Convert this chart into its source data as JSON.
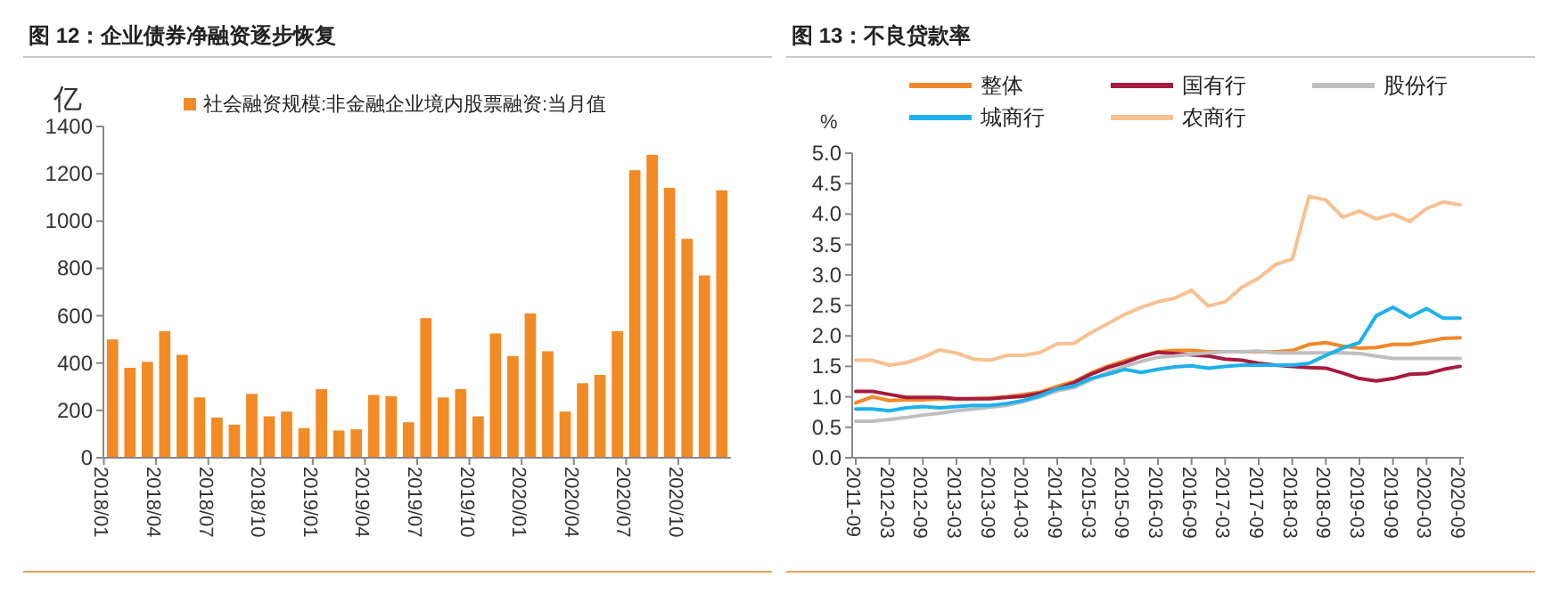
{
  "chart_data": [
    {
      "type": "bar",
      "title": "图 12：企业债券净融资逐步恢复",
      "ylabel": "亿",
      "categories": [
        "2018/01",
        null,
        null,
        "2018/04",
        null,
        null,
        "2018/07",
        null,
        null,
        "2018/10",
        null,
        null,
        "2019/01",
        null,
        null,
        "2019/04",
        null,
        null,
        "2019/07",
        null,
        null,
        "2019/10",
        null,
        null,
        "2020/01",
        null,
        null,
        "2020/04",
        null,
        null,
        "2020/07",
        null,
        null,
        "2020/10",
        null,
        null
      ],
      "series": [
        {
          "name": "社会融资规模:非金融企业境内股票融资:当月值",
          "color": "#f28a26",
          "values": [
            500,
            380,
            405,
            535,
            435,
            255,
            170,
            140,
            270,
            175,
            195,
            125,
            290,
            115,
            120,
            265,
            260,
            150,
            590,
            255,
            290,
            175,
            525,
            430,
            610,
            450,
            195,
            315,
            350,
            535,
            1215,
            1280,
            1140,
            925,
            770,
            1130
          ]
        }
      ],
      "ylim": [
        0,
        1400
      ],
      "yticks": [
        0,
        200,
        400,
        600,
        800,
        1000,
        1200,
        1400
      ],
      "grid": false,
      "legend": "top"
    },
    {
      "type": "line",
      "title": "图 13：不良贷款率",
      "ylabel": "%",
      "categories": [
        "2011-09",
        null,
        "2012-03",
        null,
        "2012-09",
        null,
        "2013-03",
        null,
        "2013-09",
        null,
        "2014-03",
        null,
        "2014-09",
        null,
        "2015-03",
        null,
        "2015-09",
        null,
        "2016-03",
        null,
        "2016-09",
        null,
        "2017-03",
        null,
        "2017-09",
        null,
        "2018-03",
        null,
        "2018-09",
        null,
        "2019-03",
        null,
        "2019-09",
        null,
        "2020-03",
        null,
        "2020-09"
      ],
      "series": [
        {
          "name": "整体",
          "color": "#f0882a",
          "values": [
            0.9,
            1.0,
            0.94,
            0.95,
            0.95,
            0.97,
            0.96,
            0.97,
            0.98,
            1.0,
            1.04,
            1.08,
            1.17,
            1.25,
            1.39,
            1.5,
            1.59,
            1.67,
            1.74,
            1.76,
            1.76,
            1.74,
            1.74,
            1.74,
            1.74,
            1.74,
            1.76,
            1.86,
            1.89,
            1.83,
            1.8,
            1.81,
            1.86,
            1.86,
            1.91,
            1.96,
            1.97
          ]
        },
        {
          "name": "国有行",
          "color": "#a61b3e",
          "values": [
            1.09,
            1.09,
            1.04,
            0.99,
            0.99,
            0.99,
            0.97,
            0.97,
            0.97,
            0.99,
            1.01,
            1.06,
            1.13,
            1.23,
            1.37,
            1.48,
            1.56,
            1.66,
            1.73,
            1.71,
            1.69,
            1.67,
            1.62,
            1.6,
            1.55,
            1.52,
            1.5,
            1.48,
            1.47,
            1.39,
            1.3,
            1.26,
            1.3,
            1.37,
            1.38,
            1.45,
            1.5
          ]
        },
        {
          "name": "股份行",
          "color": "#bfbfbf",
          "values": [
            0.6,
            0.6,
            0.63,
            0.66,
            0.7,
            0.73,
            0.77,
            0.8,
            0.83,
            0.86,
            0.92,
            1.0,
            1.1,
            1.15,
            1.28,
            1.4,
            1.5,
            1.58,
            1.65,
            1.67,
            1.7,
            1.72,
            1.74,
            1.74,
            1.75,
            1.72,
            1.72,
            1.72,
            1.72,
            1.72,
            1.71,
            1.67,
            1.63,
            1.63,
            1.63,
            1.63,
            1.63
          ]
        },
        {
          "name": "城商行",
          "color": "#1eb1ea",
          "values": [
            0.8,
            0.8,
            0.77,
            0.82,
            0.84,
            0.82,
            0.84,
            0.86,
            0.86,
            0.89,
            0.94,
            1.02,
            1.13,
            1.18,
            1.3,
            1.37,
            1.45,
            1.4,
            1.45,
            1.49,
            1.51,
            1.47,
            1.5,
            1.52,
            1.52,
            1.52,
            1.52,
            1.55,
            1.68,
            1.8,
            1.89,
            2.33,
            2.47,
            2.31,
            2.45,
            2.29,
            2.29
          ]
        },
        {
          "name": "农商行",
          "color": "#f9c090",
          "values": [
            1.6,
            1.6,
            1.52,
            1.56,
            1.65,
            1.77,
            1.72,
            1.62,
            1.6,
            1.68,
            1.68,
            1.73,
            1.87,
            1.88,
            2.05,
            2.2,
            2.35,
            2.47,
            2.56,
            2.62,
            2.75,
            2.49,
            2.56,
            2.8,
            2.95,
            3.17,
            3.26,
            4.29,
            4.23,
            3.95,
            4.05,
            3.92,
            4.0,
            3.88,
            4.09,
            4.2,
            4.15
          ]
        }
      ],
      "ylim": [
        0,
        5
      ],
      "yticks": [
        {
          "value": 0,
          "label": "0.0"
        },
        {
          "value": 0.5,
          "label": "0.5"
        },
        {
          "value": 1,
          "label": "1.0"
        },
        {
          "value": 1.5,
          "label": "1.5"
        },
        {
          "value": 2,
          "label": "2.0"
        },
        {
          "value": 2.5,
          "label": "2.5"
        },
        {
          "value": 3,
          "label": "3.0"
        },
        {
          "value": 3.5,
          "label": "3.5"
        },
        {
          "value": 4,
          "label": "4.0"
        },
        {
          "value": 4.5,
          "label": "4.5"
        },
        {
          "value": 5,
          "label": "5.0"
        }
      ],
      "grid": false,
      "legend": "top"
    }
  ]
}
